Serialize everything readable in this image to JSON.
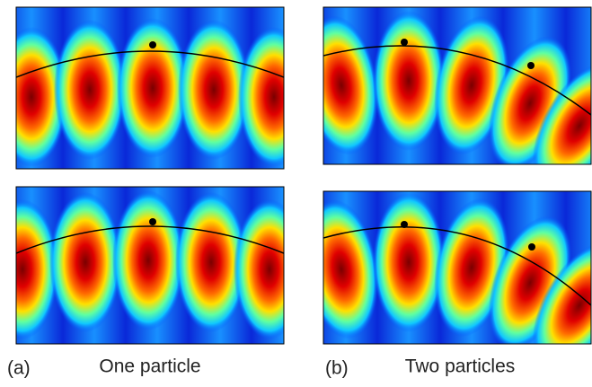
{
  "panels": [
    {
      "tag": "(a)",
      "caption": "One particle"
    },
    {
      "tag": "(b)",
      "caption": "Two particles"
    }
  ]
}
